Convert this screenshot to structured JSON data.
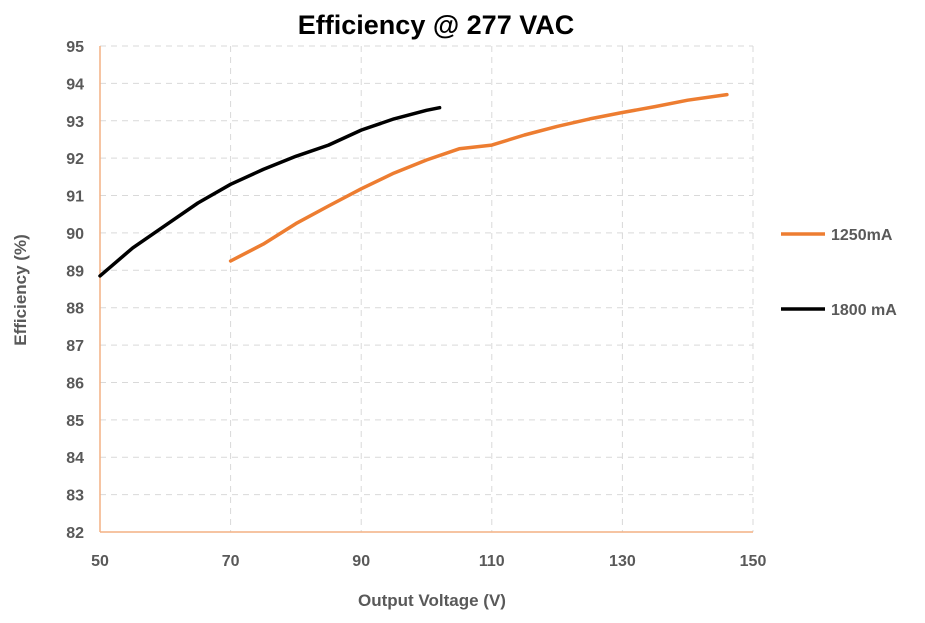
{
  "chart_data": {
    "type": "line",
    "title": "Efficiency @ 277 VAC",
    "xlabel": "Output Voltage (V)",
    "ylabel": "Efficiency (%)",
    "xlim": [
      50,
      150
    ],
    "ylim": [
      82,
      95
    ],
    "xticks": [
      50,
      70,
      90,
      110,
      130,
      150
    ],
    "yticks": [
      82,
      83,
      84,
      85,
      86,
      87,
      88,
      89,
      90,
      91,
      92,
      93,
      94,
      95
    ],
    "grid": true,
    "legend_placement": "right",
    "series": [
      {
        "name": "1250mA",
        "color": "#ED7D31",
        "x": [
          70,
          75,
          80,
          85,
          90,
          95,
          100,
          105,
          110,
          115,
          120,
          125,
          130,
          135,
          140,
          146
        ],
        "y": [
          89.25,
          89.7,
          90.25,
          90.72,
          91.18,
          91.6,
          91.95,
          92.25,
          92.35,
          92.62,
          92.85,
          93.05,
          93.22,
          93.38,
          93.55,
          93.7
        ]
      },
      {
        "name": "1800 mA",
        "color": "#000000",
        "x": [
          50,
          55,
          60,
          65,
          70,
          75,
          80,
          85,
          90,
          95,
          100,
          102
        ],
        "y": [
          88.85,
          89.6,
          90.2,
          90.8,
          91.3,
          91.7,
          92.05,
          92.35,
          92.75,
          93.05,
          93.28,
          93.35
        ]
      }
    ]
  }
}
